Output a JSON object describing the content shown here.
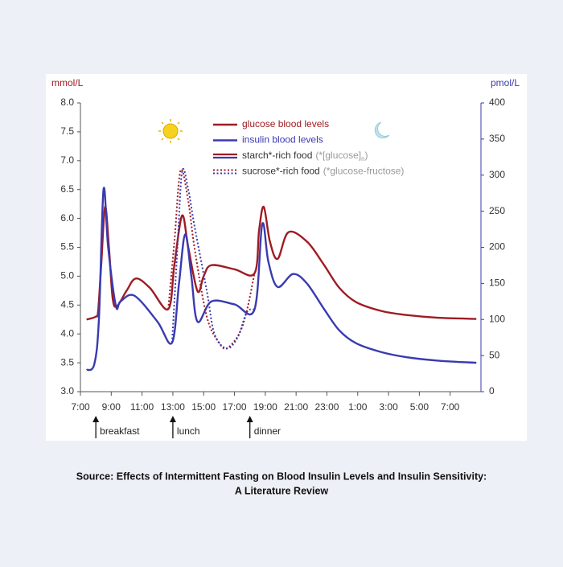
{
  "chart_data": {
    "type": "line",
    "y_label": "mmol/L",
    "y2_label": "pmol/L",
    "xlim": [
      7,
      33
    ],
    "xticks": [
      {
        "value": 7,
        "label": "7:00"
      },
      {
        "value": 9,
        "label": "9:00"
      },
      {
        "value": 11,
        "label": "11:00"
      },
      {
        "value": 13,
        "label": "13:00"
      },
      {
        "value": 15,
        "label": "15:00"
      },
      {
        "value": 17,
        "label": "17:00"
      },
      {
        "value": 19,
        "label": "19:00"
      },
      {
        "value": 21,
        "label": "21:00"
      },
      {
        "value": 23,
        "label": "23:00"
      },
      {
        "value": 25,
        "label": "1:00"
      },
      {
        "value": 27,
        "label": "3:00"
      },
      {
        "value": 29,
        "label": "5:00"
      },
      {
        "value": 31,
        "label": "7:00"
      }
    ],
    "ylim": [
      3,
      8
    ],
    "yticks": [
      {
        "value": 3,
        "label": "3.0"
      },
      3.5,
      {
        "value": 4,
        "label": "4.0"
      },
      4.5,
      {
        "value": 5,
        "label": "5.0"
      },
      5.5,
      {
        "value": 6,
        "label": "6.0"
      },
      6.5,
      {
        "value": 7,
        "label": "7.0"
      },
      7.5,
      {
        "value": 8,
        "label": "8.0"
      }
    ],
    "y2lim": [
      0,
      400
    ],
    "y2ticks": [
      0,
      50,
      100,
      150,
      200,
      250,
      300,
      350,
      400
    ],
    "series": [
      {
        "name": "glucose blood levels",
        "color": "#9e1c22",
        "style": "solid",
        "x": [
          7.4,
          8.0,
          8.15,
          8.35,
          8.6,
          8.85,
          9.1,
          9.4,
          10.0,
          10.6,
          11.5,
          12.7,
          13.1,
          13.6,
          14.0,
          14.6,
          15.0,
          15.5,
          17.0,
          18.3,
          18.6,
          18.9,
          19.3,
          19.8,
          20.5,
          21.7,
          22.8,
          23.8,
          24.9,
          26.5,
          28.1,
          30.2,
          32.7
        ],
        "values": [
          4.25,
          4.3,
          4.4,
          5.2,
          6.2,
          5.5,
          4.6,
          4.49,
          4.75,
          4.96,
          4.8,
          4.43,
          5.2,
          6.05,
          5.5,
          4.74,
          5.0,
          5.19,
          5.12,
          5.05,
          5.8,
          6.2,
          5.6,
          5.3,
          5.76,
          5.6,
          5.2,
          4.8,
          4.55,
          4.4,
          4.33,
          4.28,
          4.26
        ]
      },
      {
        "name": "insulin blood levels",
        "color": "#3a3ab0",
        "style": "solid",
        "axis": "y2",
        "x": [
          7.4,
          7.9,
          8.2,
          8.5,
          8.8,
          9.3,
          9.6,
          10.5,
          12.0,
          12.95,
          13.4,
          13.8,
          14.2,
          14.6,
          15.5,
          17.0,
          18.3,
          18.8,
          19.2,
          19.8,
          20.8,
          21.7,
          22.8,
          23.8,
          24.9,
          26.5,
          28.1,
          30.2,
          32.7
        ],
        "values": [
          30,
          38,
          100,
          280,
          200,
          119,
          125,
          133,
          97,
          68,
          150,
          218,
          160,
          97,
          125,
          121,
          114,
          232,
          180,
          145,
          163,
          150,
          115,
          85,
          67,
          55,
          48,
          43,
          40
        ]
      },
      {
        "color": "#9e1c22",
        "style": "dotted",
        "x": [
          12.7,
          13.1,
          13.5,
          14.0,
          14.4,
          15.2,
          16.0,
          16.5,
          17.3,
          17.8,
          18.3
        ],
        "values": [
          4.43,
          5.6,
          6.83,
          6.3,
          5.5,
          4.3,
          3.85,
          3.75,
          4.0,
          4.4,
          5.05
        ]
      },
      {
        "color": "#3a3ab0",
        "style": "dotted",
        "axis": "y2",
        "x": [
          12.95,
          13.3,
          13.6,
          14.0,
          14.4,
          15.2,
          15.7,
          16.5,
          17.2,
          17.8,
          18.3
        ],
        "values": [
          68,
          200,
          305,
          280,
          230,
          140,
          80,
          60,
          75,
          110,
          114
        ]
      }
    ],
    "food_legend": [
      {
        "label": "starch*-rich food",
        "note": "(*[glucose]",
        "sub": "n",
        "note_end": ")",
        "style": "solid"
      },
      {
        "label": "sucrose*-rich food",
        "note": "(*glucose-fructose)",
        "style": "dotted"
      }
    ],
    "annotations": [
      {
        "text": "breakfast",
        "x": 8
      },
      {
        "text": "lunch",
        "x": 13
      },
      {
        "text": "dinner",
        "x": 18
      }
    ]
  },
  "caption": [
    "Source: Effects of Intermittent Fasting on Blood Insulin Levels and Insulin Sensitivity:",
    "A Literature Review"
  ]
}
